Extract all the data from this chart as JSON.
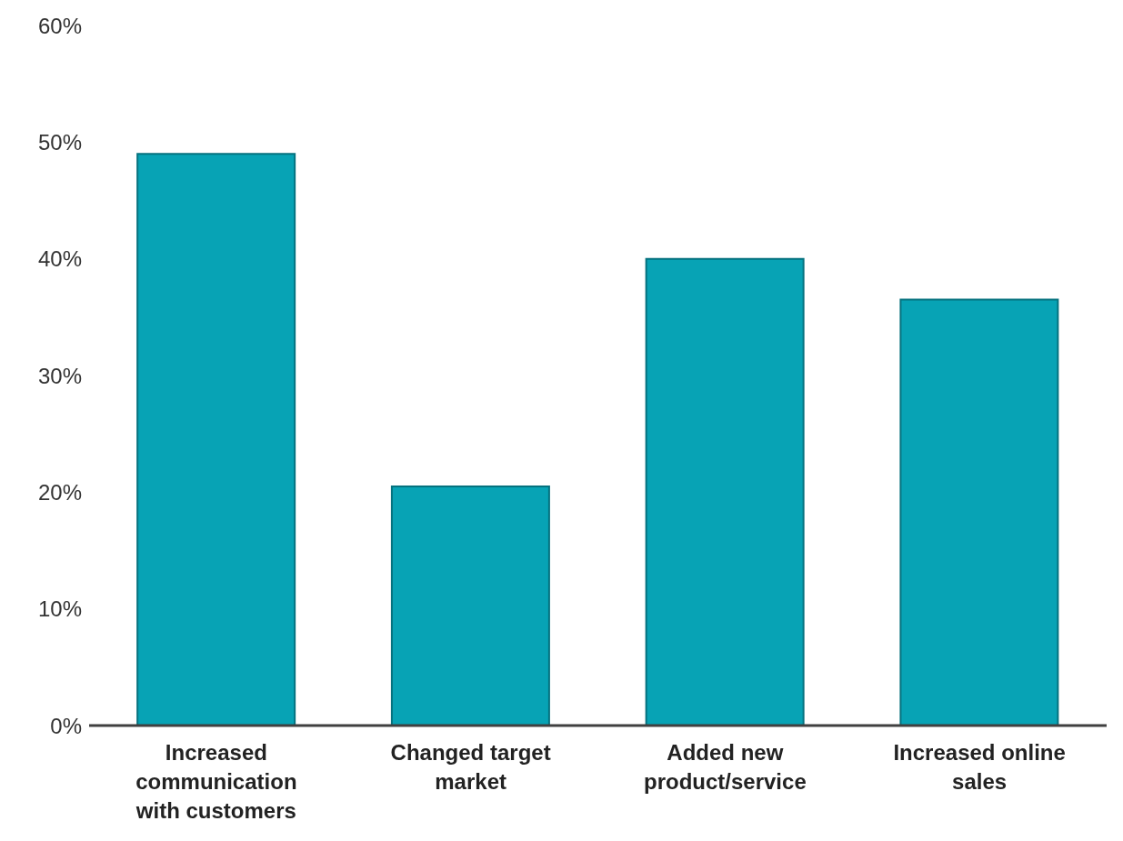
{
  "chart_data": {
    "type": "bar",
    "categories": [
      "Increased communication with customers",
      "Changed target market",
      "Added new product/service",
      "Increased online sales"
    ],
    "values": [
      49,
      20.5,
      40,
      36.5
    ],
    "color": "#07a3b5",
    "ylim": [
      0,
      60
    ],
    "yticks": [
      {
        "value": 0,
        "label": "0%"
      },
      {
        "value": 10,
        "label": "10%"
      },
      {
        "value": 20,
        "label": "20%"
      },
      {
        "value": 30,
        "label": "30%"
      },
      {
        "value": 40,
        "label": "40%"
      },
      {
        "value": 50,
        "label": "50%"
      },
      {
        "value": 60,
        "label": "60%"
      }
    ],
    "grid": false
  }
}
